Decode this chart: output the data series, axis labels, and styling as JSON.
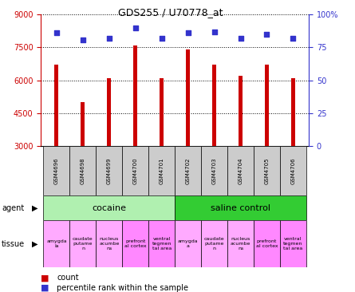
{
  "title": "GDS255 / U70778_at",
  "samples": [
    "GSM4696",
    "GSM4698",
    "GSM4699",
    "GSM4700",
    "GSM4701",
    "GSM4702",
    "GSM4703",
    "GSM4704",
    "GSM4705",
    "GSM4706"
  ],
  "counts": [
    6700,
    5000,
    6100,
    7600,
    6100,
    7400,
    6700,
    6200,
    6700,
    6100
  ],
  "percentiles": [
    86,
    81,
    82,
    90,
    82,
    86,
    87,
    82,
    85,
    82
  ],
  "ylim_left": [
    3000,
    9000
  ],
  "ylim_right": [
    0,
    100
  ],
  "yticks_left": [
    3000,
    4500,
    6000,
    7500,
    9000
  ],
  "yticks_right": [
    0,
    25,
    50,
    75,
    100
  ],
  "bar_color": "#cc0000",
  "dot_color": "#3333cc",
  "agent_groups": [
    {
      "label": "cocaine",
      "start": 0,
      "end": 5,
      "color": "#b0f0b0"
    },
    {
      "label": "saline control",
      "start": 5,
      "end": 10,
      "color": "#33cc33"
    }
  ],
  "tissues": [
    {
      "label": "amygda\nla",
      "color": "#ffaaff"
    },
    {
      "label": "caudate\nputame\nn",
      "color": "#ffaaff"
    },
    {
      "label": "nucleus\nacumbe\nns",
      "color": "#ffaaff"
    },
    {
      "label": "prefront\nal cortex",
      "color": "#ff88ff"
    },
    {
      "label": "ventral\ntegmen\ntal area",
      "color": "#ff88ff"
    },
    {
      "label": "amygda\na",
      "color": "#ffaaff"
    },
    {
      "label": "caudate\nputame\nn",
      "color": "#ffaaff"
    },
    {
      "label": "nucleus\nacumbe\nns",
      "color": "#ffaaff"
    },
    {
      "label": "prefront\nal cortex",
      "color": "#ff88ff"
    },
    {
      "label": "ventral\ntegmen\ntal area",
      "color": "#ff88ff"
    }
  ],
  "gsm_box_color": "#cccccc",
  "background_color": "#ffffff",
  "left_yaxis_color": "#cc0000",
  "right_yaxis_color": "#3333cc",
  "bar_width": 0.15
}
